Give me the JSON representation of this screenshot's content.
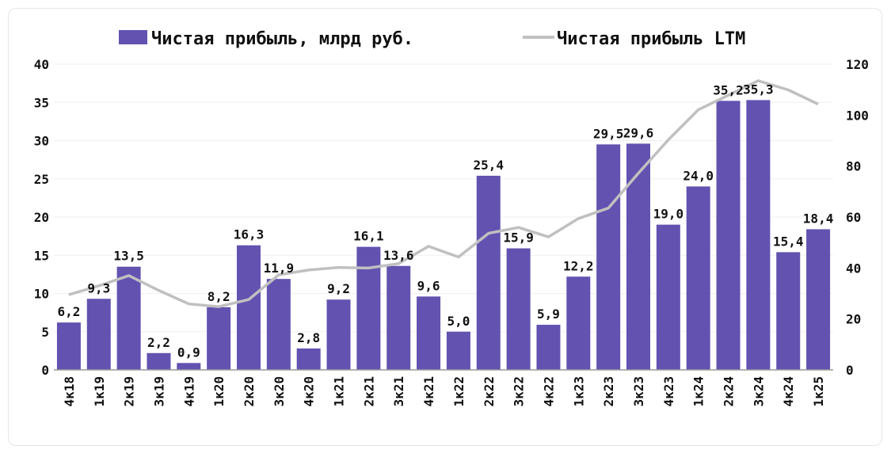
{
  "chart_data": {
    "type": "bar",
    "title": "",
    "categories": [
      "4к18",
      "1к19",
      "2к19",
      "3к19",
      "4к19",
      "1к20",
      "2к20",
      "3к20",
      "4к20",
      "1к21",
      "2к21",
      "3к21",
      "4к21",
      "1к22",
      "2к22",
      "3к22",
      "4к22",
      "1к23",
      "2к23",
      "3к23",
      "4к23",
      "1к24",
      "2к24",
      "3к24",
      "4к24",
      "1к25"
    ],
    "series": [
      {
        "name": "Чистая прибыль, млрд руб.",
        "type": "bar",
        "axis": "left",
        "color": "#6352b0",
        "values": [
          6.2,
          9.3,
          13.5,
          2.2,
          0.9,
          8.2,
          16.3,
          11.9,
          2.8,
          9.2,
          16.1,
          13.6,
          9.6,
          5.0,
          25.4,
          15.9,
          5.9,
          12.2,
          29.5,
          29.6,
          19.0,
          24.0,
          35.2,
          35.3,
          15.4,
          18.4
        ],
        "labels": [
          "6,2",
          "9,3",
          "13,5",
          "2,2",
          "0,9",
          "8,2",
          "16,3",
          "11,9",
          "2,8",
          "9,2",
          "16,1",
          "13,6",
          "9,6",
          "5,0",
          "25,4",
          "15,9",
          "5,9",
          "12,2",
          "29,5",
          "29,6",
          "19,0",
          "24,0",
          "35,2",
          "35,3",
          "15,4",
          "18,4"
        ]
      },
      {
        "name": "Чистая прибыль LTM",
        "type": "line",
        "axis": "right",
        "color": "#c0c0c0",
        "values": [
          29.5,
          33,
          37,
          31.2,
          25.9,
          24.8,
          27.6,
          37.3,
          39.2,
          40.2,
          40.0,
          41.7,
          48.5,
          44.3,
          53.6,
          55.9,
          52.2,
          59.4,
          63.5,
          77.2,
          90.3,
          102.1,
          107.8,
          113.5,
          109.9,
          104.3
        ]
      }
    ],
    "y_left": {
      "min": 0,
      "max": 40,
      "ticks": [
        "0",
        "5",
        "10",
        "15",
        "20",
        "25",
        "30",
        "35",
        "40"
      ]
    },
    "y_right": {
      "min": 0,
      "max": 120,
      "ticks": [
        "0",
        "20",
        "40",
        "60",
        "80",
        "100",
        "120"
      ]
    },
    "grid": true,
    "legend_position": "top"
  }
}
